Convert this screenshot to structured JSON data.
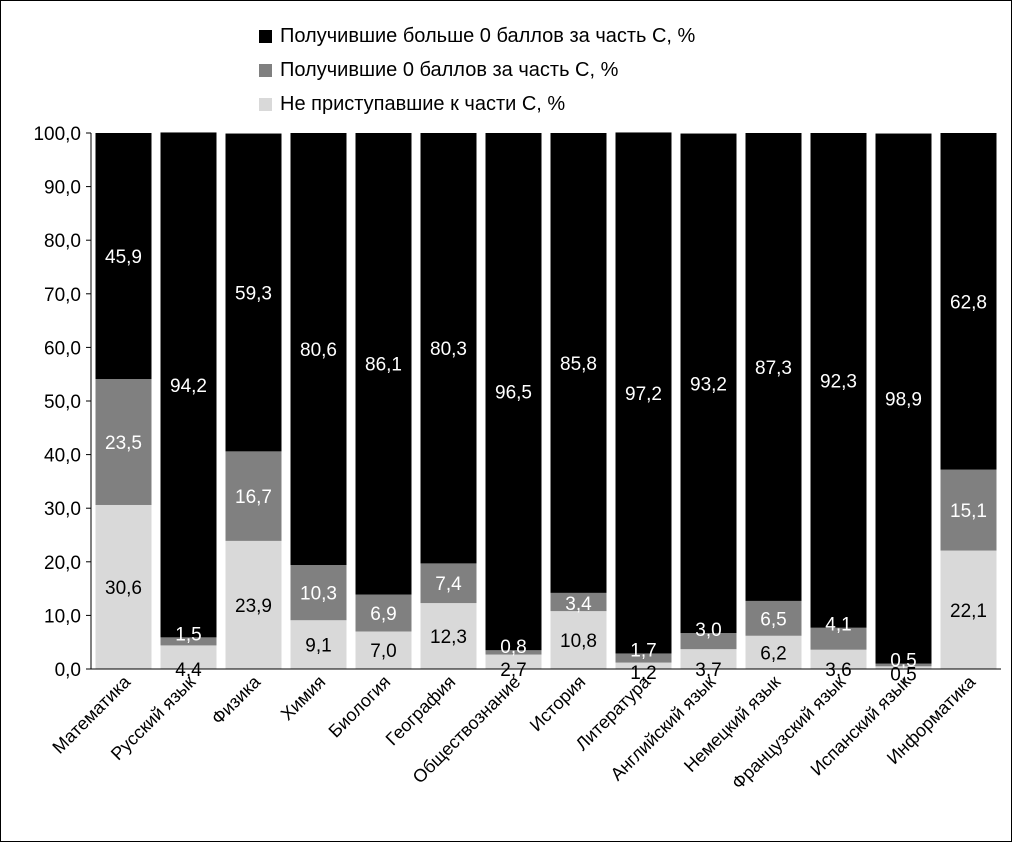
{
  "chart_data": {
    "type": "bar",
    "stacked": true,
    "categories": [
      "Математика",
      "Русский язык",
      "Физика",
      "Химия",
      "Биология",
      "География",
      "Обществознание",
      "История",
      "Литература",
      "Английский язык",
      "Немецкий язык",
      "Французский язык",
      "Испанский язык",
      "Информатика"
    ],
    "series": [
      {
        "name": "Не приступавшие к части С, %",
        "color": "#d9d9d9",
        "values": [
          30.6,
          4.4,
          23.9,
          9.1,
          7.0,
          12.3,
          2.7,
          10.8,
          1.2,
          3.7,
          6.2,
          3.6,
          0.5,
          22.1
        ]
      },
      {
        "name": "Получившие 0 баллов за часть С, %",
        "color": "#808080",
        "values": [
          23.5,
          1.5,
          16.7,
          10.3,
          6.9,
          7.4,
          0.8,
          3.4,
          1.7,
          3.0,
          6.5,
          4.1,
          0.5,
          15.1
        ]
      },
      {
        "name": "Получившие больше 0 баллов за часть С, %",
        "color": "#000000",
        "values": [
          45.9,
          94.2,
          59.3,
          80.6,
          86.1,
          80.3,
          96.5,
          85.8,
          97.2,
          93.2,
          87.3,
          92.3,
          98.9,
          62.8
        ]
      }
    ],
    "value_labels": [
      [
        "30,6",
        "4,4",
        "23,9",
        "9,1",
        "7,0",
        "12,3",
        "2,7",
        "10,8",
        "1,2",
        "3,7",
        "6,2",
        "3,6",
        "0,5",
        "22,1"
      ],
      [
        "23,5",
        "1,5",
        "16,7",
        "10,3",
        "6,9",
        "7,4",
        "0,8",
        "3,4",
        "1,7",
        "3,0",
        "6,5",
        "4,1",
        "0,5",
        "15,1"
      ],
      [
        "45,9",
        "94,2",
        "59,3",
        "80,6",
        "86,1",
        "80,3",
        "96,5",
        "85,8",
        "97,2",
        "93,2",
        "87,3",
        "92,3",
        "98,9",
        "62,8"
      ]
    ],
    "ylim": [
      0,
      100
    ],
    "yticks": [
      0,
      10,
      20,
      30,
      40,
      50,
      60,
      70,
      80,
      90,
      100
    ],
    "ytick_labels": [
      "0,0",
      "10,0",
      "20,0",
      "30,0",
      "40,0",
      "50,0",
      "60,0",
      "70,0",
      "80,0",
      "90,0",
      "100,0"
    ],
    "legend_position": "top",
    "grid": false
  },
  "legend": {
    "items": [
      {
        "label": "Получившие больше 0 баллов за часть С, %",
        "color": "#000000"
      },
      {
        "label": "Получившие 0 баллов за часть С, %",
        "color": "#808080"
      },
      {
        "label": "Не приступавшие к части С, %",
        "color": "#d9d9d9"
      }
    ]
  }
}
